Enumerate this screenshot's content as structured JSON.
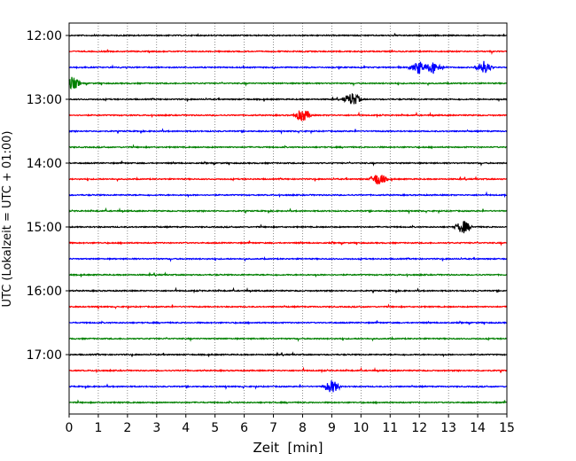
{
  "chart_data": {
    "type": "line",
    "chart_kind": "helicorder / seismogram drum plot",
    "xlabel": "Zeit  [min]",
    "ylabel": "UTC (Lokalzeit = UTC + 01:00)",
    "xlim": [
      0,
      15
    ],
    "x_ticks": [
      0,
      1,
      2,
      3,
      4,
      5,
      6,
      7,
      8,
      9,
      10,
      11,
      12,
      13,
      14,
      15
    ],
    "x_tick_labels": [
      "0",
      "1",
      "2",
      "3",
      "4",
      "5",
      "6",
      "7",
      "8",
      "9",
      "10",
      "11",
      "12",
      "13",
      "14",
      "15"
    ],
    "y_tick_labels": [
      "12:00",
      "13:00",
      "14:00",
      "15:00",
      "16:00",
      "17:00"
    ],
    "trace_interval_minutes": 15,
    "traces_per_hour": 4,
    "trace_count": 24,
    "start_time": "12:00",
    "vertical_grid": "dotted at each minute",
    "trace_colors": [
      "#000000",
      "#ff0000",
      "#0000ff",
      "#008000"
    ],
    "notable_events": [
      {
        "trace": 2,
        "minutes": [
          12.0,
          12.5,
          14.2
        ]
      },
      {
        "trace": 3,
        "minutes": [
          0.1
        ]
      },
      {
        "trace": 4,
        "minutes": [
          9.7
        ]
      },
      {
        "trace": 5,
        "minutes": [
          8.0
        ]
      },
      {
        "trace": 9,
        "minutes": [
          10.6
        ]
      },
      {
        "trace": 12,
        "minutes": [
          13.5
        ]
      },
      {
        "trace": 22,
        "minutes": [
          9.0
        ]
      }
    ]
  }
}
